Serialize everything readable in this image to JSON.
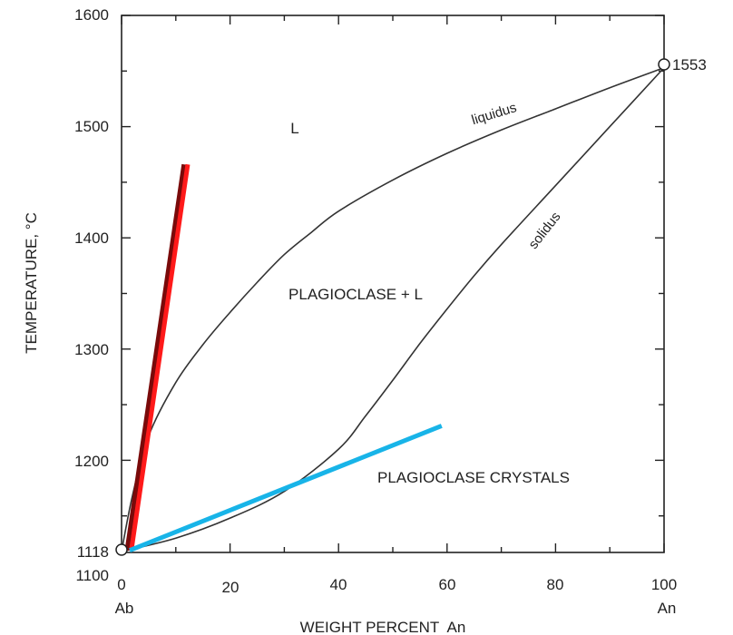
{
  "chart_data": {
    "type": "line",
    "xlabel": "WEIGHT PERCENT  An",
    "ylabel": "TEMPERATURE, °C",
    "xlim": [
      0,
      100
    ],
    "ylim": [
      1100,
      1600
    ],
    "x_ticks": [
      "0",
      "20",
      "40",
      "60",
      "80",
      "100"
    ],
    "y_ticks": [
      "1100",
      "1200",
      "1300",
      "1400",
      "1500",
      "1600"
    ],
    "x_end_labels": {
      "left": "Ab",
      "right": "An"
    },
    "endpoint_labels": {
      "left": "1118",
      "right": "1553"
    },
    "region_labels": {
      "liquid": "L",
      "two_phase": "PLAGIOCLASE + L",
      "solid": "PLAGIOCLASE CRYSTALS"
    },
    "series": [
      {
        "name": "liquidus",
        "x": [
          0,
          2,
          5,
          10,
          15,
          20,
          25,
          30,
          35,
          40,
          50,
          60,
          70,
          80,
          90,
          100
        ],
        "y": [
          1118,
          1168,
          1222,
          1270,
          1304,
          1333,
          1360,
          1385,
          1405,
          1424,
          1452,
          1476,
          1497,
          1516,
          1535,
          1553
        ]
      },
      {
        "name": "solidus",
        "x": [
          0,
          10,
          20,
          30,
          40,
          45,
          50,
          55,
          60,
          65,
          70,
          80,
          90,
          100
        ],
        "y": [
          1118,
          1130,
          1148,
          1172,
          1210,
          1240,
          1272,
          1305,
          1336,
          1366,
          1394,
          1447,
          1500,
          1553
        ]
      }
    ],
    "annotation_lines": [
      {
        "color": "#7a0a0a",
        "x": [
          1,
          11.5
        ],
        "y": [
          1119,
          1466
        ]
      },
      {
        "color": "#ff1a1a",
        "x": [
          1.8,
          12.2
        ],
        "y": [
          1119,
          1466
        ]
      },
      {
        "color": "#18b4e8",
        "x": [
          1.5,
          59
        ],
        "y": [
          1119,
          1231
        ]
      }
    ],
    "grid": false
  }
}
